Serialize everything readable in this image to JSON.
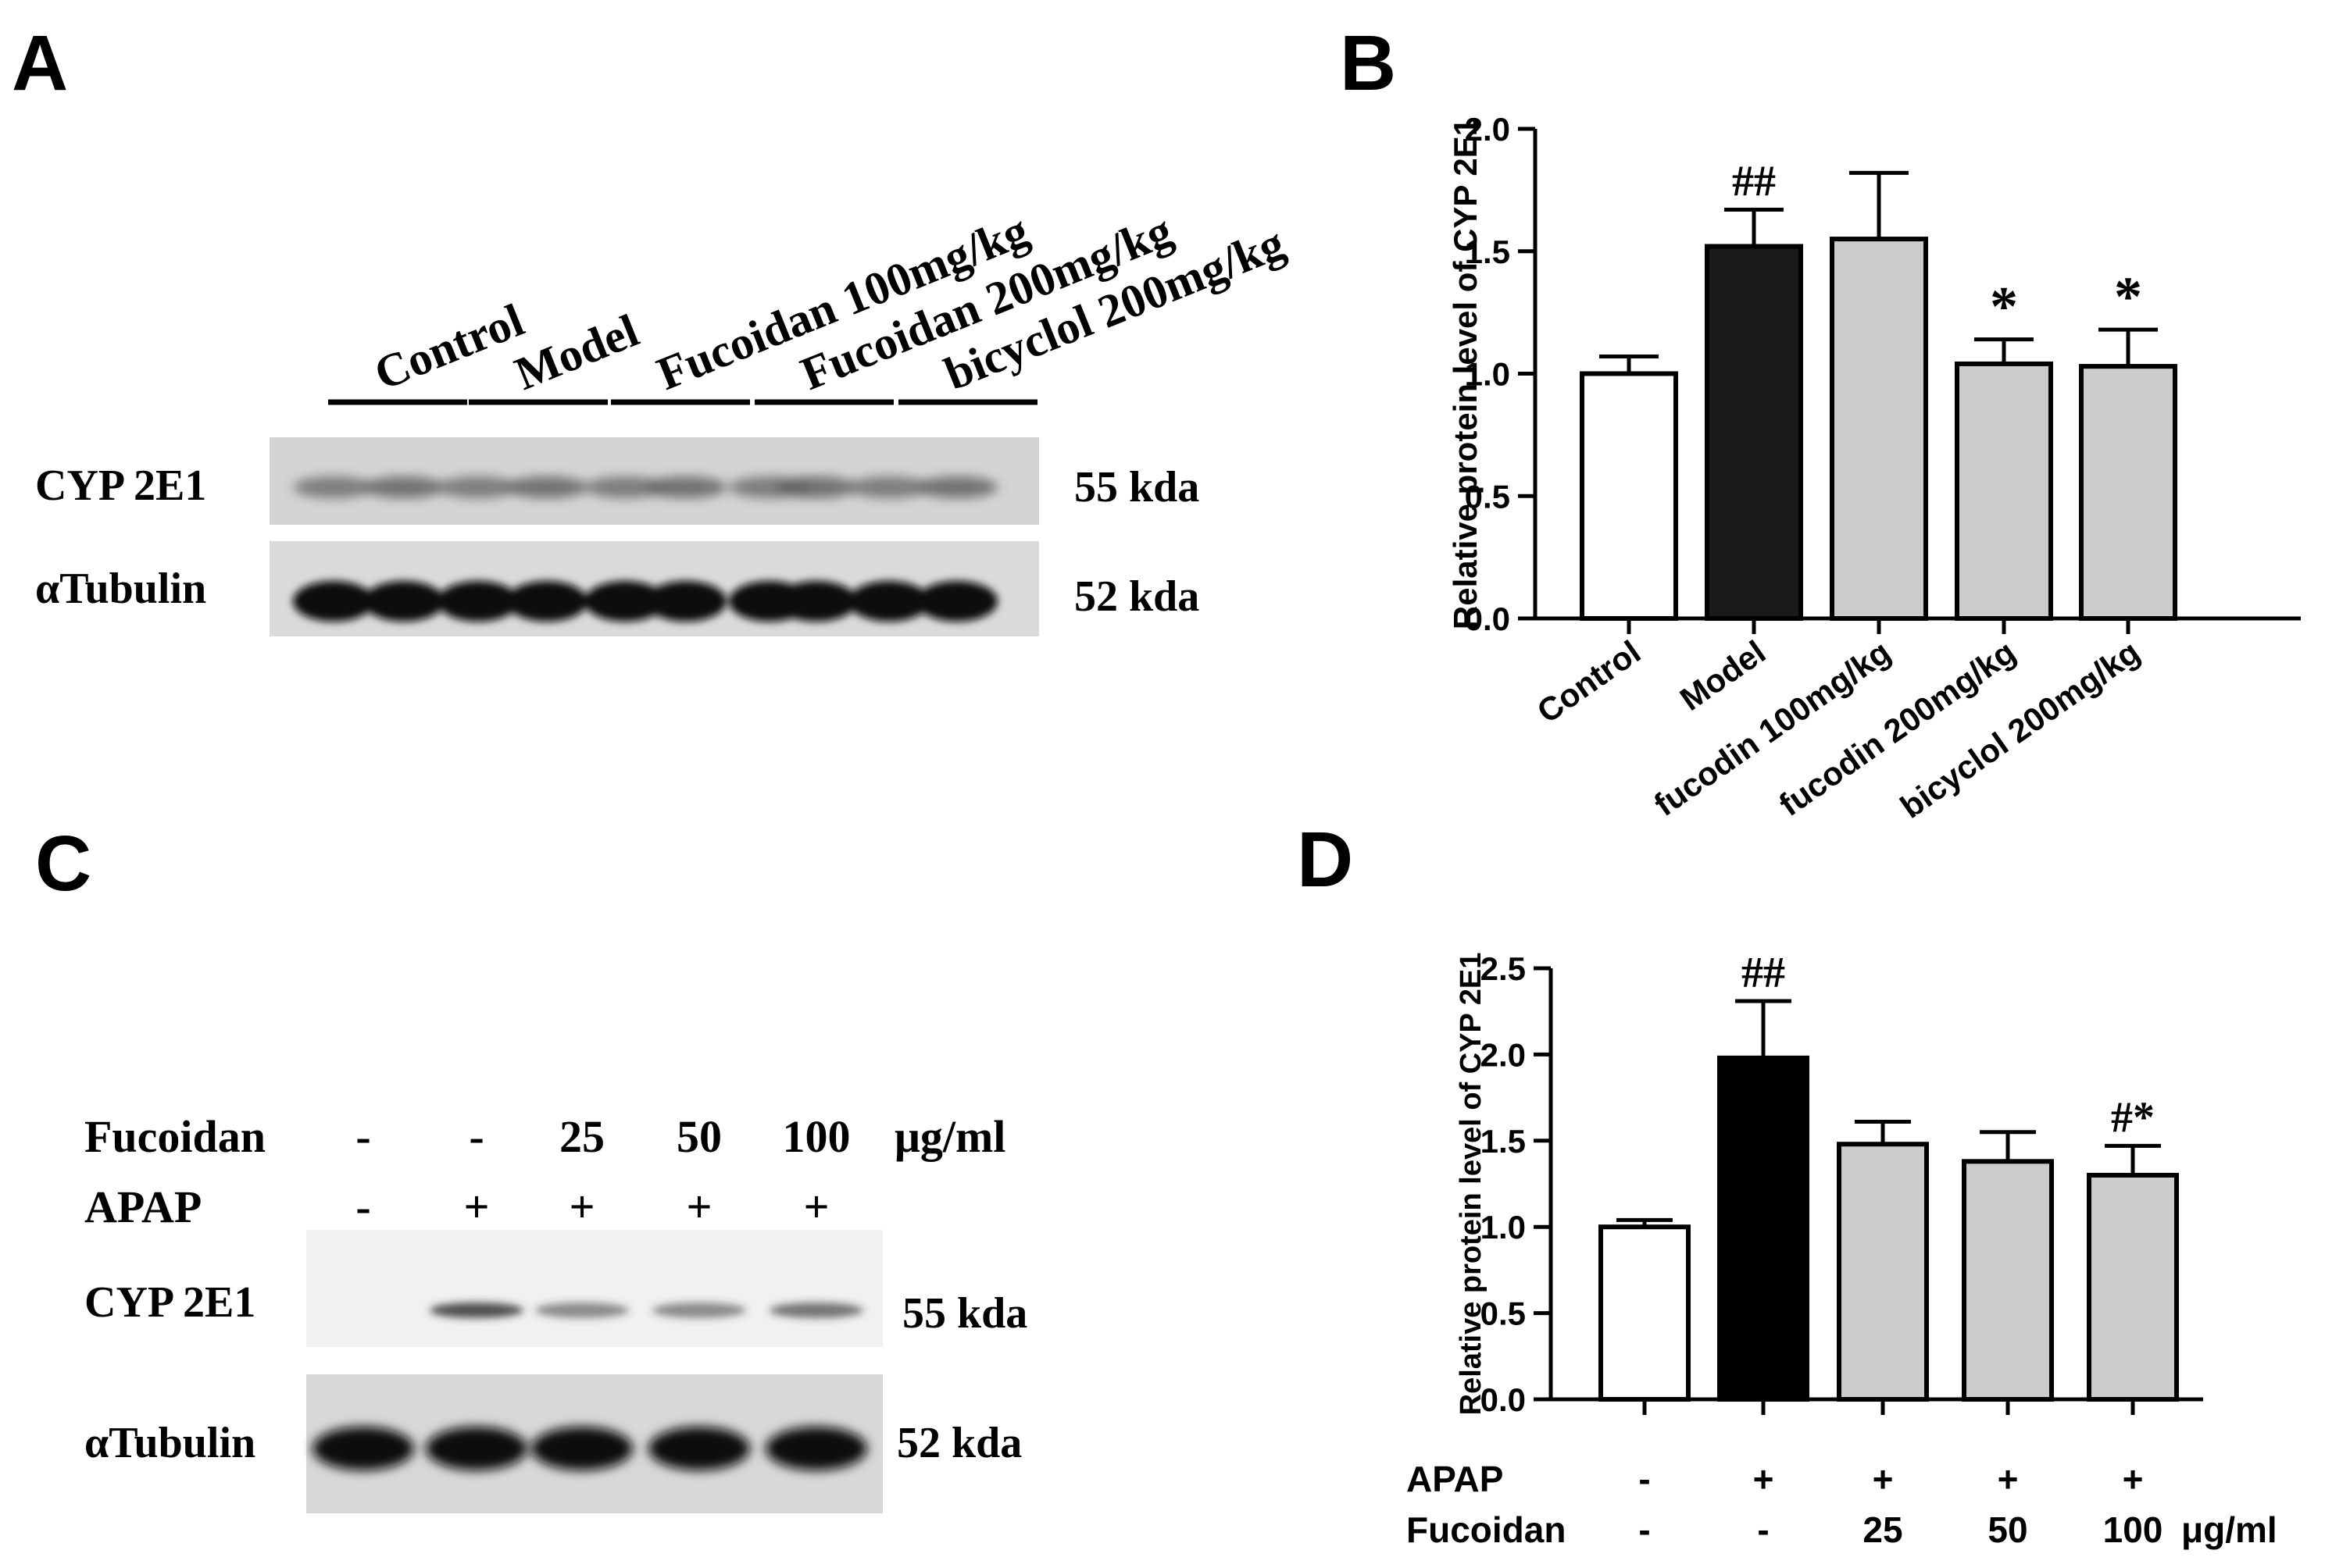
{
  "panels": {
    "A": {
      "letter": "A",
      "lanes": [
        "Control",
        "Model",
        "Fucoidan 100mg/kg",
        "Fucoidan 200mg/kg",
        "bicyclol 200mg/kg"
      ],
      "bands": [
        {
          "label": "CYP 2E1",
          "kda": "55 kda"
        },
        {
          "label": "αTubulin",
          "kda": "52 kda"
        }
      ]
    },
    "C": {
      "letter": "C",
      "rows": [
        {
          "label": "Fucoidan",
          "values": [
            "-",
            "-",
            "25",
            "50",
            "100"
          ],
          "unit": "μg/ml"
        },
        {
          "label": "APAP",
          "values": [
            "-",
            "+",
            "+",
            "+",
            "+"
          ],
          "unit": ""
        }
      ],
      "bands": [
        {
          "label": "CYP 2E1",
          "kda": "55 kda"
        },
        {
          "label": "αTubulin",
          "kda": "52 kda"
        }
      ],
      "cyp_intensity": [
        0.0,
        0.85,
        0.55,
        0.55,
        0.65
      ]
    }
  },
  "chart_data": [
    {
      "panel": "B",
      "letter": "B",
      "type": "bar",
      "ylabel": "Relative protein level of CYP 2E1",
      "ylim": [
        0,
        2.0
      ],
      "yticks": [
        "0.0",
        "0.5",
        "1.0",
        "1.5",
        "2.0"
      ],
      "categories": [
        "Control",
        "Model",
        "fucodin 100mg/kg",
        "fucodin 200mg/kg",
        "bicyclol 200mg/kg"
      ],
      "values": [
        1.0,
        1.52,
        1.55,
        1.04,
        1.03
      ],
      "errors": [
        0.07,
        0.15,
        0.27,
        0.1,
        0.15
      ],
      "fills": [
        "#ffffff",
        "#1a1a1a",
        "#cccccc",
        "#cccccc",
        "#cccccc"
      ],
      "annotations": [
        "",
        "##",
        "",
        "*",
        "*"
      ]
    },
    {
      "panel": "D",
      "letter": "D",
      "type": "bar",
      "ylabel": "Relative protein level of CYP 2E1",
      "ylim": [
        0,
        2.5
      ],
      "yticks": [
        "0.0",
        "0.5",
        "1.0",
        "1.5",
        "2.0",
        "2.5"
      ],
      "values": [
        1.0,
        1.98,
        1.48,
        1.38,
        1.3
      ],
      "errors": [
        0.04,
        0.33,
        0.13,
        0.17,
        0.17
      ],
      "fills": [
        "#ffffff",
        "#000000",
        "#cccccc",
        "#cccccc",
        "#cccccc"
      ],
      "annotations": [
        "",
        "##",
        "",
        "",
        "#*"
      ],
      "xrows": [
        {
          "label": "APAP",
          "values": [
            "-",
            "+",
            "+",
            "+",
            "+"
          ],
          "unit": ""
        },
        {
          "label": "Fucoidan",
          "values": [
            "-",
            "-",
            "25",
            "50",
            "100"
          ],
          "unit": "μg/ml"
        }
      ]
    }
  ]
}
